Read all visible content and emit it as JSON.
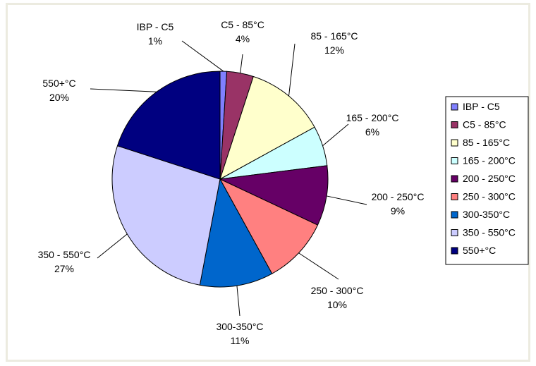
{
  "chart_data": {
    "type": "pie",
    "legend_position": "right",
    "slices": [
      {
        "name": "IBP - C5",
        "value": 1,
        "label": "1%",
        "color": "#8080ff"
      },
      {
        "name": "C5 - 85°C",
        "value": 4,
        "label": "4%",
        "color": "#993366"
      },
      {
        "name": "85 - 165°C",
        "value": 12,
        "label": "12%",
        "color": "#ffffcc"
      },
      {
        "name": "165 - 200°C",
        "value": 6,
        "label": "6%",
        "color": "#ccffff"
      },
      {
        "name": "200 - 250°C",
        "value": 9,
        "label": "9%",
        "color": "#660066"
      },
      {
        "name": "250 - 300°C",
        "value": 10,
        "label": "10%",
        "color": "#ff8080"
      },
      {
        "name": "300-350°C",
        "value": 11,
        "label": "11%",
        "color": "#0066cc"
      },
      {
        "name": "350 - 550°C",
        "value": 27,
        "label": "27%",
        "color": "#ccccff"
      },
      {
        "name": "550+°C",
        "value": 20,
        "label": "20%",
        "color": "#000080"
      }
    ]
  }
}
